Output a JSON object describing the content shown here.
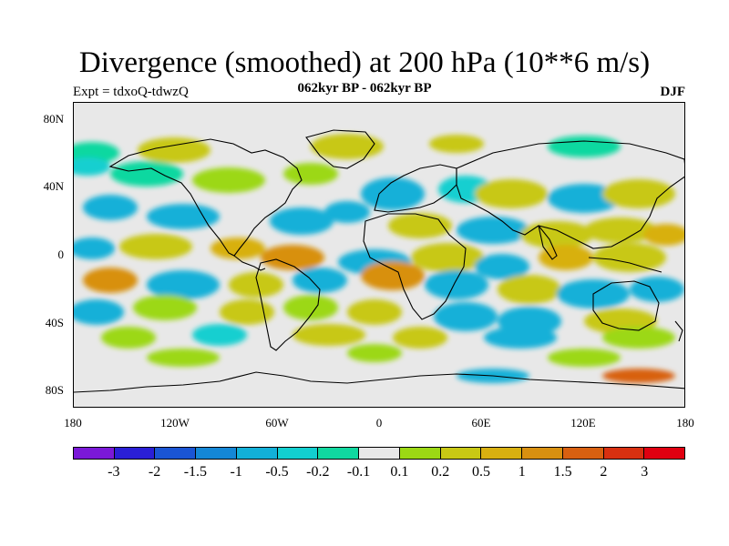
{
  "title": "Divergence (smoothed) at 200 hPa (10**6 m/s)",
  "subtitle_left": "Expt = tdxoQ-tdwzQ",
  "subtitle_center": "062kyr BP - 062kyr BP",
  "subtitle_right": "DJF",
  "map": {
    "projection": "cylindrical equidistant",
    "lon_range": [
      -180,
      180
    ],
    "lat_range": [
      -90,
      90
    ],
    "background_color": "#e8e8e8",
    "coastline_color": "#000000",
    "y_ticks": [
      {
        "lat": 80,
        "label": "80N"
      },
      {
        "lat": 40,
        "label": "40N"
      },
      {
        "lat": 0,
        "label": "0"
      },
      {
        "lat": -40,
        "label": "40S"
      },
      {
        "lat": -80,
        "label": "80S"
      }
    ],
    "x_ticks": [
      {
        "lon": -180,
        "label": "180"
      },
      {
        "lon": -120,
        "label": "120W"
      },
      {
        "lon": -60,
        "label": "60W"
      },
      {
        "lon": 0,
        "label": "0"
      },
      {
        "lon": 60,
        "label": "60E"
      },
      {
        "lon": 120,
        "label": "120E"
      },
      {
        "lon": 180,
        "label": "180"
      }
    ]
  },
  "colorbar": {
    "colors": [
      "#7b18d8",
      "#2a1fd6",
      "#1a55d4",
      "#1487d6",
      "#12b0d8",
      "#12cfd0",
      "#10d8a0",
      "#e8e8e8",
      "#9cd814",
      "#c8c814",
      "#d8b010",
      "#d89010",
      "#d86010",
      "#d83010",
      "#e00010"
    ],
    "labels": [
      "-3",
      "-2",
      "-1.5",
      "-1",
      "-0.5",
      "-0.2",
      "-0.1",
      "0.1",
      "0.2",
      "0.5",
      "1",
      "1.5",
      "2",
      "3"
    ]
  }
}
